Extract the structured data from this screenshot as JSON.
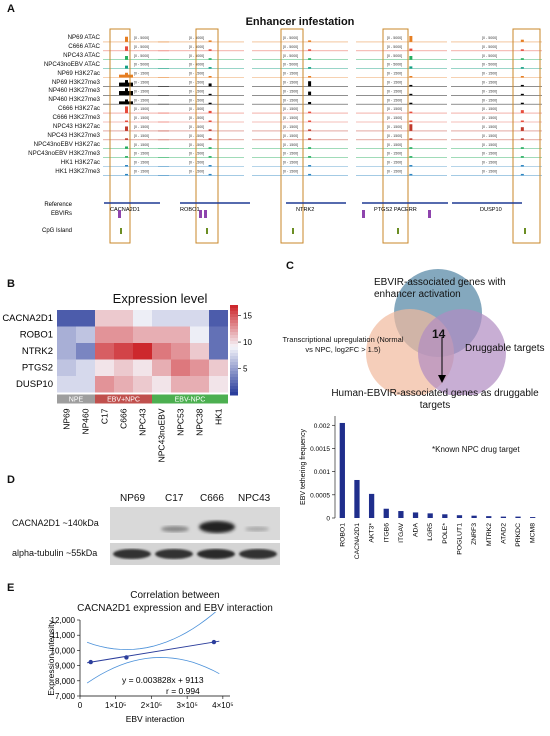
{
  "panels": {
    "A": "A",
    "B": "B",
    "C": "C",
    "D": "D",
    "E": "E"
  },
  "panelA": {
    "title": "Enhancer infestation",
    "tracks": [
      {
        "label": "NP69 ATAC",
        "color": "#e67e22"
      },
      {
        "label": "C666 ATAC",
        "color": "#e74c3c"
      },
      {
        "label": "NPC43 ATAC",
        "color": "#27ae60"
      },
      {
        "label": "NPC43noEBV ATAC",
        "color": "#16a085"
      },
      {
        "label": "NP69 H3K27ac",
        "color": "#e67e22"
      },
      {
        "label": "NP69 H3K27me3",
        "color": "#000000"
      },
      {
        "label": "NP460 H3K27me3",
        "color": "#000000"
      },
      {
        "label": "NP460 H3K27me3",
        "color": "#000000"
      },
      {
        "label": "C666 H3K27ac",
        "color": "#e74c3c"
      },
      {
        "label": "C666 H3K27me3",
        "color": "#e74c3c"
      },
      {
        "label": "NPC43 H3K27ac",
        "color": "#c0392b"
      },
      {
        "label": "NPC43 H3K27me3",
        "color": "#c0392b"
      },
      {
        "label": "NPC43noEBV H3K27ac",
        "color": "#27ae60"
      },
      {
        "label": "NPC43noEBV H3K27me3",
        "color": "#27ae60"
      },
      {
        "label": "HK1 H3K27ac",
        "color": "#2e86c1"
      },
      {
        "label": "HK1 H3K27me3",
        "color": "#2e86c1"
      }
    ],
    "scale_labels": [
      "[0 - 5000]",
      "[0 - 5000]",
      "[0 - 5000]",
      "[0 - 5000]",
      "[0 - 1500]",
      "[0 - 1500]",
      "[0 - 1500]",
      "[0 - 1500]",
      "[0 - 1500]",
      "[0 - 1500]",
      "[0 - 1500]",
      "[0 - 1500]",
      "[0 - 1500]",
      "[0 - 1500]",
      "[0 - 1500]",
      "[0 - 1500]"
    ],
    "bottom_rows": [
      "Reference",
      "EBVIRs",
      "CpG Island"
    ],
    "genes": [
      "CACNA2D1",
      "ROBO1",
      "NTRK2",
      "PTGS2 PACERR",
      "DUSP10"
    ]
  },
  "panelB": {
    "title": "Expression level",
    "genes": [
      "CACNA2D1",
      "ROBO1",
      "NTRK2",
      "PTGS2",
      "DUSP10"
    ],
    "samples": [
      "NP69",
      "NP460",
      "C17",
      "C666",
      "NPC43",
      "NPC43noEBV",
      "NPC53",
      "NPC38",
      "HK1"
    ],
    "groups": [
      {
        "label": "NPE",
        "color": "#9e9e9e"
      },
      {
        "label": "EBV+NPC",
        "color": "#c0504d"
      },
      {
        "label": "EBV-NPC",
        "color": "#4caf50"
      }
    ],
    "colorbar_ticks": [
      "15",
      "10",
      "5"
    ],
    "values": [
      [
        2,
        2,
        11,
        11,
        9,
        8,
        8,
        8,
        2
      ],
      [
        6,
        7,
        13,
        13,
        12,
        12,
        12,
        9,
        3
      ],
      [
        6,
        4,
        15,
        16,
        17,
        14,
        13,
        11,
        3
      ],
      [
        7,
        8,
        10,
        11,
        10,
        12,
        14,
        13,
        11
      ],
      [
        8,
        8,
        13,
        12,
        11,
        10,
        12,
        12,
        10
      ]
    ]
  },
  "panelC": {
    "venn": {
      "top": "EBVIR-associated genes with enhancer activation",
      "left": "Transcriptional upregulation (Normal vs NPC, log2FC > 1.5)",
      "right": "Druggable targets",
      "center": "14"
    },
    "subtitle": "Human-EBVIR-associated genes as druggable targets",
    "annotation": "*Known NPC drug target",
    "chart_data": {
      "type": "bar",
      "categories": [
        "ROBO1",
        "CACNA2D1",
        "AKT3*",
        "ITGB6",
        "ITGAV",
        "ADA",
        "LGR5",
        "POLE*",
        "POGLUT1",
        "ZNRF3",
        "MTRK2",
        "ATAD2",
        "PRKDC",
        "MCM8"
      ],
      "values": [
        0.00205,
        0.00082,
        0.00052,
        0.0002,
        0.00015,
        0.00012,
        0.0001,
        8e-05,
        6e-05,
        5e-05,
        4e-05,
        3e-05,
        3e-05,
        2e-05
      ],
      "ylabel": "EBV tethering frequency",
      "yticks": [
        "0",
        "0.0005",
        "0.001",
        "0.0015",
        "0.002"
      ],
      "ylim": [
        0,
        0.0022
      ]
    }
  },
  "panelD": {
    "samples": [
      "NP69",
      "C17",
      "C666",
      "NPC43"
    ],
    "rows": [
      "CACNA2D1 ~140kDa",
      "alpha-tubulin ~55kDa"
    ]
  },
  "panelE": {
    "title_line1": "Correlation between",
    "title_line2": "CACNA2D1 expression and EBV interaction",
    "equation": "y = 0.003828x + 9113",
    "r": "r = 0.994",
    "chart_data": {
      "type": "scatter",
      "points": [
        {
          "x": 30000,
          "y": 9230
        },
        {
          "x": 130000,
          "y": 9540
        },
        {
          "x": 375000,
          "y": 10550
        }
      ],
      "xlabel": "EBV interaction",
      "ylabel": "Expression intensity",
      "xticks": [
        "0",
        "1×10⁵",
        "2×10⁵",
        "3×10⁵",
        "4×10⁵"
      ],
      "yticks": [
        "12,000",
        "11,000",
        "10,000",
        "9,000",
        "8,000",
        "7,000"
      ],
      "xlim": [
        0,
        420000
      ],
      "ylim": [
        7000,
        12000
      ]
    }
  }
}
